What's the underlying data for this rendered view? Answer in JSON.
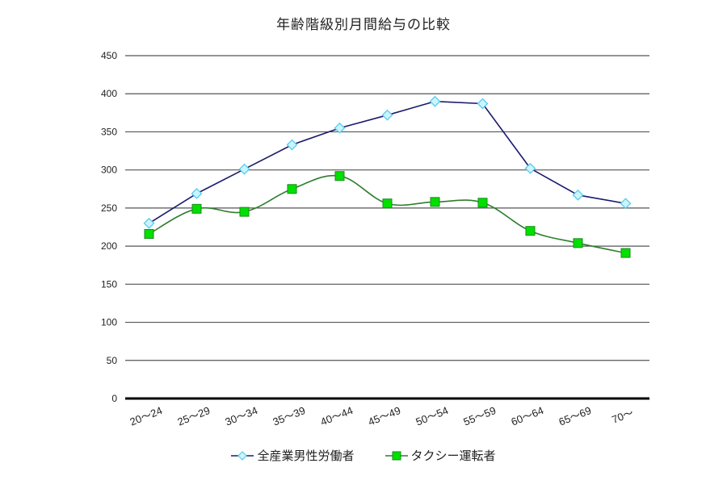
{
  "chart_data": {
    "type": "line",
    "title": "年齢階級別月間給与の比較",
    "xlabel": "",
    "ylabel": "",
    "ylim": [
      0,
      450
    ],
    "yticks": [
      0,
      50,
      100,
      150,
      200,
      250,
      300,
      350,
      400,
      450
    ],
    "grid": true,
    "legend_position": "bottom",
    "categories": [
      "20～24",
      "25～29",
      "30～34",
      "35～39",
      "40～44",
      "45～49",
      "50～54",
      "55～59",
      "60～64",
      "65～69",
      "70～"
    ],
    "series": [
      {
        "name": "全産業男性労働者",
        "values": [
          230,
          269,
          301,
          333,
          355,
          372,
          390,
          387,
          302,
          267,
          256
        ],
        "line_color": "#1a1a6e",
        "marker": "diamond",
        "marker_fill": "#ccf4ff",
        "marker_stroke": "#55ccee",
        "smooth": false
      },
      {
        "name": "タクシー運転者",
        "values": [
          216,
          249,
          245,
          275,
          292,
          256,
          258,
          257,
          220,
          204,
          191
        ],
        "line_color": "#2e7d2e",
        "marker": "square",
        "marker_fill": "#00e000",
        "marker_stroke": "#1a8a1a",
        "smooth": true
      }
    ]
  }
}
